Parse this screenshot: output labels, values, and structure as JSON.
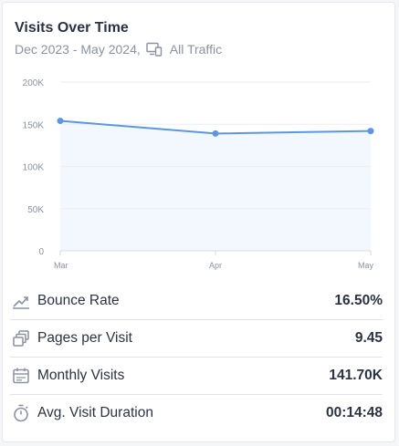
{
  "header": {
    "title": "Visits Over Time",
    "date_range": "Dec 2023 - May 2024,",
    "traffic_icon": "devices-icon",
    "traffic_label": "All Traffic"
  },
  "colors": {
    "line": "#5b97e6",
    "area": "#f3f7fe",
    "text": "#2b3342",
    "muted": "#8a92a0"
  },
  "chart_data": {
    "type": "line",
    "title": "",
    "categories": [
      "Mar",
      "Apr",
      "May"
    ],
    "values": [
      154000,
      139000,
      142000
    ],
    "ylim": [
      0,
      200000
    ],
    "yticks": [
      0,
      50000,
      100000,
      150000,
      200000
    ],
    "ytick_labels": [
      "0",
      "50K",
      "100K",
      "150K",
      "200K"
    ],
    "grid": true
  },
  "metrics": [
    {
      "icon": "bounce-rate-icon",
      "label": "Bounce Rate",
      "value": "16.50%"
    },
    {
      "icon": "pages-per-visit-icon",
      "label": "Pages per Visit",
      "value": "9.45"
    },
    {
      "icon": "calendar-icon",
      "label": "Monthly Visits",
      "value": "141.70K"
    },
    {
      "icon": "stopwatch-icon",
      "label": "Avg. Visit Duration",
      "value": "00:14:48"
    }
  ]
}
